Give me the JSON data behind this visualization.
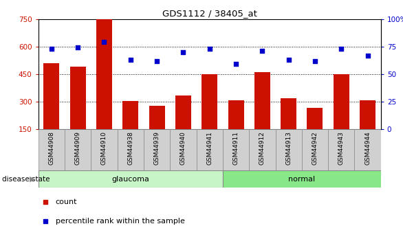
{
  "title": "GDS1112 / 38405_at",
  "samples": [
    "GSM44908",
    "GSM44909",
    "GSM44910",
    "GSM44938",
    "GSM44939",
    "GSM44940",
    "GSM44941",
    "GSM44911",
    "GSM44912",
    "GSM44913",
    "GSM44942",
    "GSM44943",
    "GSM44944"
  ],
  "counts": [
    510,
    490,
    748,
    305,
    278,
    335,
    450,
    308,
    462,
    320,
    265,
    448,
    308
  ],
  "percentiles": [
    73,
    74,
    79,
    63,
    62,
    70,
    73,
    59,
    71,
    63,
    62,
    73,
    67
  ],
  "groups": [
    "glaucoma",
    "glaucoma",
    "glaucoma",
    "glaucoma",
    "glaucoma",
    "glaucoma",
    "glaucoma",
    "normal",
    "normal",
    "normal",
    "normal",
    "normal",
    "normal"
  ],
  "glaucoma_color": "#c8f5c8",
  "normal_color": "#88e888",
  "bar_color": "#cc1100",
  "percentile_color": "#0000cc",
  "ylim_left": [
    150,
    750
  ],
  "ylim_right": [
    0,
    100
  ],
  "yticks_left": [
    150,
    300,
    450,
    600,
    750
  ],
  "yticks_right": [
    0,
    25,
    50,
    75,
    100
  ],
  "bg_color": "#ffffff",
  "tick_label_bg": "#d0d0d0"
}
